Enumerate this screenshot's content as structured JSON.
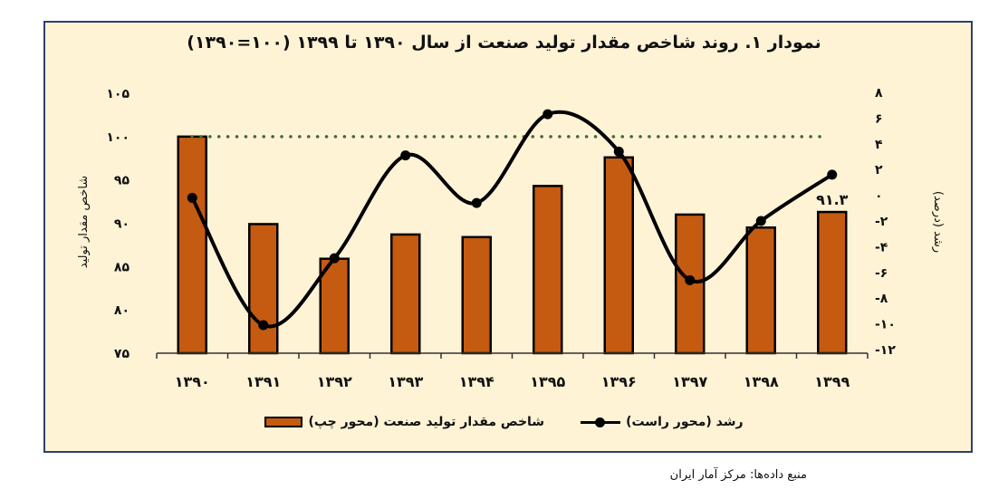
{
  "chart_title": "نمودار ۱. روند شاخص مقدار تولید صنعت از سال ۱۳۹۰ تا ۱۳۹۹ (۱۰۰=۱۳۹۰)",
  "source": "منبع داده‌ها: مرکز آمار ایران",
  "legend": {
    "bars": "شاخص مقدار تولید صنعت (محور چپ)",
    "line": "رشد (محور راست)"
  },
  "axes": {
    "left_title": "شاخص مقدار تولید",
    "right_title": "رشد (درصد)",
    "left_ticks": [
      "۱۰۵",
      "۱۰۰",
      "۹۵",
      "۹۰",
      "۸۵",
      "۸۰",
      "۷۵"
    ],
    "right_ticks": [
      "۸",
      "۶",
      "۴",
      "۲",
      "۰",
      "-۲",
      "-۴",
      "-۶",
      "-۸",
      "-۱۰",
      "-۱۲"
    ]
  },
  "data_label_last": "۹۱.۳",
  "colors": {
    "bar": "#C55A11",
    "line": "#000000",
    "reference_line": "#3F6B35",
    "background": "#FFF3D6",
    "frame_border": "#2F3F6E"
  },
  "chart_data": {
    "type": "bar+line",
    "title": "نمودار ۱. روند شاخص مقدار تولید صنعت از سال ۱۳۹۰ تا ۱۳۹۹ (۱۰۰=۱۳۹۰)",
    "categories": [
      "۱۳۹۰",
      "۱۳۹۱",
      "۱۳۹۲",
      "۱۳۹۳",
      "۱۳۹۴",
      "۱۳۹۵",
      "۱۳۹۶",
      "۱۳۹۷",
      "۱۳۹۸",
      "۱۳۹۹"
    ],
    "series": [
      {
        "name": "شاخص مقدار تولید صنعت (محور چپ)",
        "type": "bar",
        "axis": "left",
        "values": [
          100,
          89.9,
          85.9,
          88.7,
          88.4,
          94.3,
          97.6,
          91.0,
          89.5,
          91.3
        ]
      },
      {
        "name": "رشد (محور راست)",
        "type": "line",
        "axis": "right",
        "values": [
          -0.2,
          -10.1,
          -4.9,
          3.1,
          -0.6,
          6.3,
          3.4,
          -6.6,
          -2.0,
          1.6
        ]
      }
    ],
    "reference_line": {
      "axis": "left",
      "value": 100,
      "style": "dotted",
      "color": "#3F6B35"
    },
    "annotations": [
      {
        "category": "۱۳۹۹",
        "text": "۹۱.۳"
      }
    ],
    "ylabel_left": "شاخص مقدار تولید",
    "ylabel_right": "رشد (درصد)",
    "ylim_left": [
      75,
      105
    ],
    "ylim_right": [
      -12,
      8
    ],
    "grid": false,
    "legend_position": "bottom"
  }
}
